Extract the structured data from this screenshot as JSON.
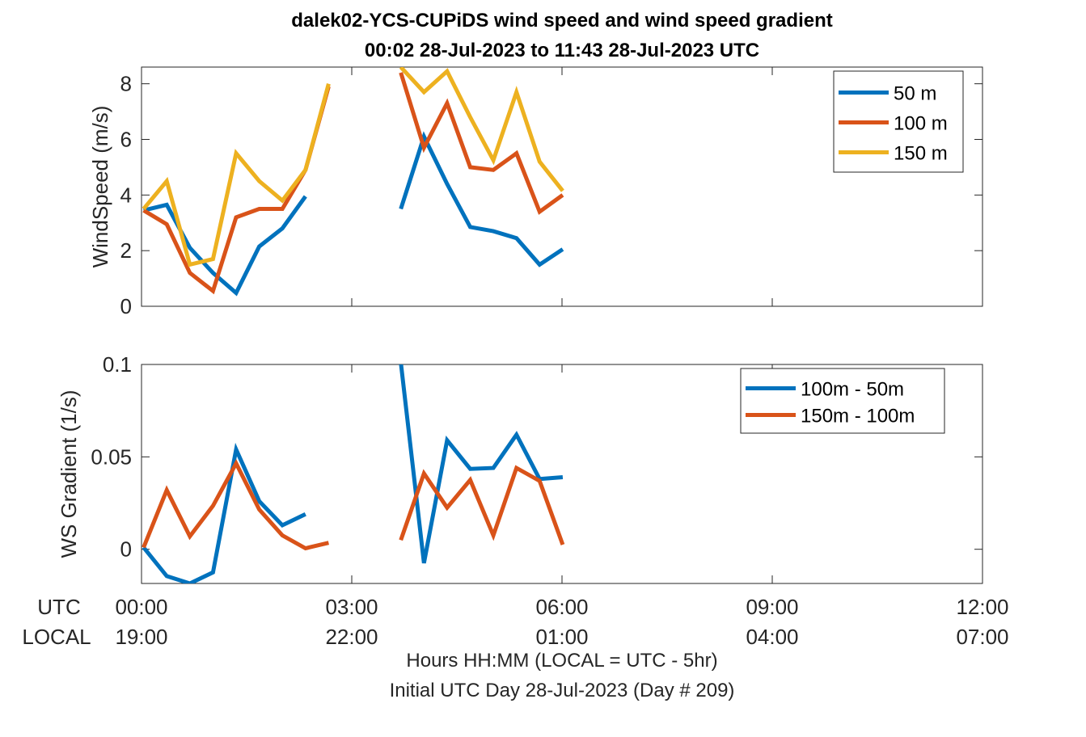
{
  "title_line1": "dalek02-YCS-CUPiDS  wind speed and wind speed gradient",
  "title_line2": "00:02 28-Jul-2023 to 11:43 28-Jul-2023  UTC",
  "xaxis": {
    "row_label_utc": "UTC",
    "row_label_local": "LOCAL",
    "utc_ticks": [
      "00:00",
      "03:00",
      "06:00",
      "09:00",
      "12:00"
    ],
    "local_ticks": [
      "19:00",
      "22:00",
      "01:00",
      "04:00",
      "07:00"
    ],
    "label_line1": "Hours HH:MM  (LOCAL = UTC - 5hr)",
    "label_line2": "Initial UTC Day 28-Jul-2023 (Day # 209)"
  },
  "chart_data": [
    {
      "type": "line",
      "ylabel": "WindSpeed (m/s)",
      "xlim": [
        0,
        12
      ],
      "ylim": [
        0,
        8.6
      ],
      "yticks": [
        0,
        2,
        4,
        6,
        8
      ],
      "ytick_labels": [
        "0",
        "2",
        "4",
        "6",
        "8"
      ],
      "legend_position": "top-right",
      "series": [
        {
          "name": "50 m",
          "color": "#0072BD",
          "segments": [
            [
              [
                0.03,
                3.45
              ],
              [
                0.36,
                3.65
              ],
              [
                0.69,
                2.1
              ],
              [
                1.02,
                1.2
              ],
              [
                1.35,
                0.48
              ],
              [
                1.68,
                2.15
              ],
              [
                2.01,
                2.8
              ],
              [
                2.34,
                3.95
              ]
            ],
            [
              [
                3.7,
                3.5
              ],
              [
                4.03,
                6.1
              ],
              [
                4.36,
                4.4
              ],
              [
                4.69,
                2.85
              ],
              [
                5.02,
                2.7
              ],
              [
                5.35,
                2.45
              ],
              [
                5.68,
                1.5
              ],
              [
                6.01,
                2.05
              ]
            ]
          ]
        },
        {
          "name": "100 m",
          "color": "#D95319",
          "segments": [
            [
              [
                0.03,
                3.45
              ],
              [
                0.36,
                2.95
              ],
              [
                0.69,
                1.2
              ],
              [
                1.02,
                0.55
              ],
              [
                1.35,
                3.2
              ],
              [
                1.68,
                3.5
              ],
              [
                2.01,
                3.5
              ],
              [
                2.34,
                4.9
              ],
              [
                2.67,
                7.9
              ]
            ],
            [
              [
                3.7,
                8.4
              ],
              [
                4.03,
                5.7
              ],
              [
                4.36,
                7.3
              ],
              [
                4.69,
                5.0
              ],
              [
                5.02,
                4.9
              ],
              [
                5.35,
                5.5
              ],
              [
                5.68,
                3.4
              ],
              [
                6.01,
                4.0
              ]
            ]
          ]
        },
        {
          "name": "150 m",
          "color": "#EDB120",
          "segments": [
            [
              [
                0.03,
                3.5
              ],
              [
                0.36,
                4.5
              ],
              [
                0.69,
                1.5
              ],
              [
                1.02,
                1.7
              ],
              [
                1.35,
                5.5
              ],
              [
                1.68,
                4.5
              ],
              [
                2.01,
                3.8
              ],
              [
                2.34,
                4.9
              ],
              [
                2.67,
                8.0
              ]
            ],
            [
              [
                3.7,
                8.6
              ],
              [
                4.03,
                7.7
              ],
              [
                4.36,
                8.45
              ],
              [
                4.69,
                6.8
              ],
              [
                5.02,
                5.25
              ],
              [
                5.35,
                7.7
              ],
              [
                5.68,
                5.2
              ],
              [
                6.01,
                4.15
              ]
            ]
          ]
        }
      ]
    },
    {
      "type": "line",
      "ylabel": "WS Gradient (1/s)",
      "xlim": [
        0,
        12
      ],
      "ylim": [
        -0.0185,
        0.1
      ],
      "yticks": [
        0,
        0.05,
        0.1
      ],
      "ytick_labels": [
        "0",
        "0.05",
        "0.1"
      ],
      "legend_position": "top-right",
      "series": [
        {
          "name": "100m - 50m",
          "color": "#0072BD",
          "segments": [
            [
              [
                0.03,
                0.001
              ],
              [
                0.36,
                -0.0145
              ],
              [
                0.69,
                -0.0185
              ],
              [
                1.02,
                -0.0125
              ],
              [
                1.35,
                0.054
              ],
              [
                1.68,
                0.026
              ],
              [
                2.01,
                0.013
              ],
              [
                2.34,
                0.019
              ]
            ],
            [
              [
                3.7,
                0.101
              ],
              [
                4.03,
                -0.0075
              ],
              [
                4.36,
                0.059
              ],
              [
                4.69,
                0.0435
              ],
              [
                5.02,
                0.044
              ],
              [
                5.35,
                0.062
              ],
              [
                5.68,
                0.038
              ],
              [
                6.01,
                0.039
              ]
            ]
          ]
        },
        {
          "name": "150m - 100m",
          "color": "#D95319",
          "segments": [
            [
              [
                0.03,
                0.001
              ],
              [
                0.36,
                0.032
              ],
              [
                0.69,
                0.007
              ],
              [
                1.02,
                0.0235
              ],
              [
                1.35,
                0.0465
              ],
              [
                1.68,
                0.0215
              ],
              [
                2.01,
                0.0075
              ],
              [
                2.34,
                0.0005
              ],
              [
                2.67,
                0.0035
              ]
            ],
            [
              [
                3.7,
                0.005
              ],
              [
                4.03,
                0.041
              ],
              [
                4.36,
                0.0225
              ],
              [
                4.69,
                0.0375
              ],
              [
                5.02,
                0.0075
              ],
              [
                5.35,
                0.044
              ],
              [
                5.68,
                0.037
              ],
              [
                6.01,
                0.0025
              ]
            ]
          ]
        }
      ]
    }
  ]
}
